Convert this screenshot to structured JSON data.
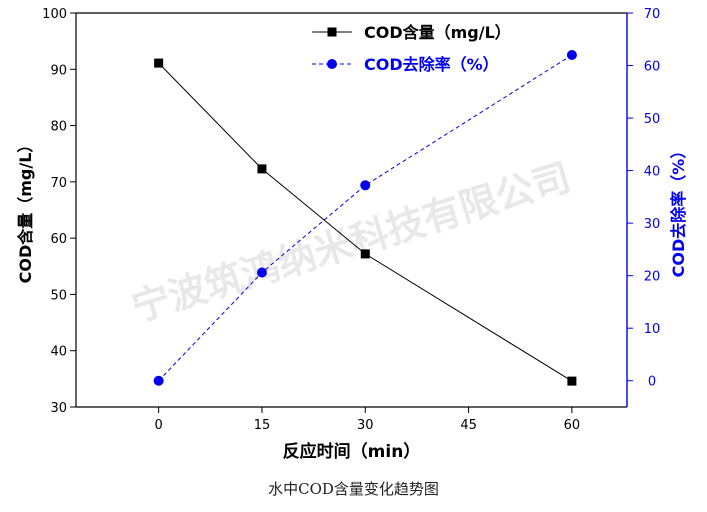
{
  "caption": "水中COD含量变化趋势图",
  "watermark": "宁波筑鸿纳米科技有限公司",
  "chart_data": {
    "type": "line",
    "title": "",
    "xlabel": "反应时间（min）",
    "ylabel_left": "COD含量（mg/L）",
    "ylabel_right": "COD去除率（%）",
    "x_ticks": [
      0,
      15,
      30,
      45,
      60
    ],
    "xlim": [
      -12,
      68
    ],
    "ylim_left": [
      30,
      100
    ],
    "ylim_right": [
      -5,
      70
    ],
    "y_ticks_left": [
      30,
      40,
      50,
      60,
      70,
      80,
      90,
      100
    ],
    "y_ticks_right": [
      0,
      10,
      20,
      30,
      40,
      50,
      60,
      70
    ],
    "legend_position": "top-right",
    "colors": {
      "left_axis": "#000000",
      "right_axis": "#0000ee",
      "series1": "#000000",
      "series2": "#0000ee"
    },
    "series": [
      {
        "name": "COD含量（mg/L）",
        "axis": "left",
        "marker": "square",
        "line": "solid",
        "x": [
          0,
          15,
          30,
          60
        ],
        "y": [
          91.1,
          72.3,
          57.2,
          34.6
        ]
      },
      {
        "name": "COD去除率（%）",
        "axis": "right",
        "marker": "circle",
        "line": "dashed",
        "x": [
          0,
          15,
          30,
          60
        ],
        "y": [
          0,
          20.6,
          37.2,
          62.0
        ]
      }
    ]
  }
}
